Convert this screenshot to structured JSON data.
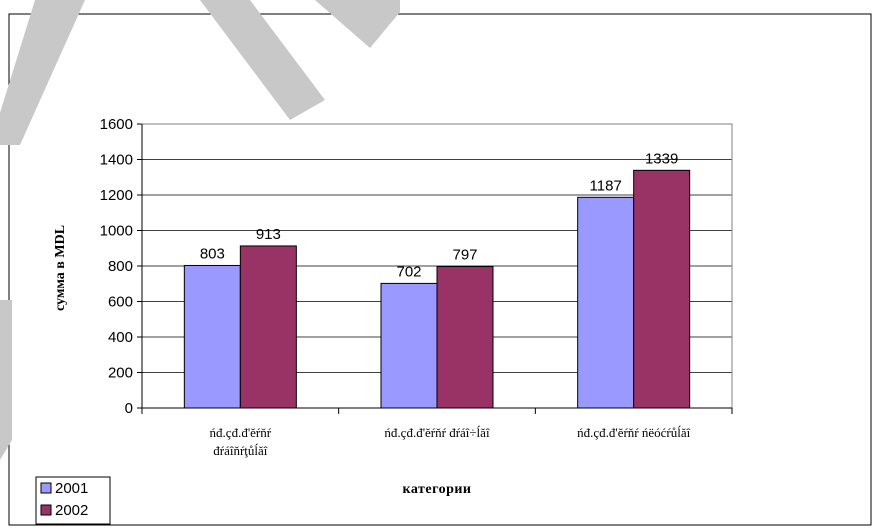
{
  "chart_data": {
    "type": "bar",
    "categories": [
      [
        "ńđ.çđ.đ'ĕŕňŕ",
        "đŕáîňŕţůĺăî"
      ],
      [
        "ńđ.çđ.đ'ĕŕňŕ đŕáî÷ĺăî"
      ],
      [
        "ńđ.çđ.đ'ĕŕňŕ ńëóćŕůĺăî"
      ]
    ],
    "series": [
      {
        "name": "2001",
        "values": [
          803,
          702,
          1187
        ],
        "color": "#9999ff"
      },
      {
        "name": "2002",
        "values": [
          913,
          797,
          1339
        ],
        "color": "#993366"
      }
    ],
    "ylim": [
      0,
      1600
    ],
    "yticks": [
      "0",
      "200",
      "400",
      "600",
      "800",
      "1000",
      "1200",
      "1400",
      "1600"
    ],
    "ylabel": "сумма в MDL",
    "xlabel": "категории",
    "grid": true,
    "legend": "bottom-left",
    "watermark_color": "#c8c8c8"
  }
}
